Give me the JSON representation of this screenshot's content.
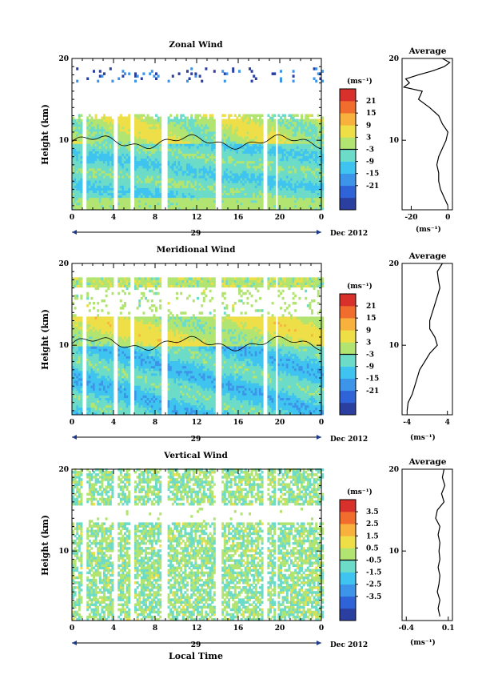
{
  "chart_data": [
    {
      "type": "heatmap",
      "title": "Zonal Wind",
      "ylabel": "Height (km)",
      "x_ticks": [
        "0",
        "4",
        "8",
        "12",
        "16",
        "20",
        "0"
      ],
      "y_ticks": [
        "20",
        "10"
      ],
      "date_day": "29",
      "date_label": "Dec 2012",
      "xlim": [
        0,
        24
      ],
      "ylim": [
        1.5,
        20
      ],
      "colorbar": {
        "unit": "(ms⁻¹)",
        "ticks": [
          "21",
          "15",
          "9",
          "3",
          "-3",
          "-9",
          "-15",
          "-21"
        ],
        "range": [
          -24,
          24
        ]
      },
      "data_gaps_hours": [
        [
          1.0,
          1.4
        ],
        [
          4.0,
          4.4
        ],
        [
          5.6,
          6.0
        ],
        [
          8.6,
          9.2
        ],
        [
          13.7,
          14.2
        ],
        [
          18.2,
          18.6
        ],
        [
          19.4,
          19.7
        ]
      ],
      "profile": {
        "title": "Average",
        "x_ticks": [
          "-20",
          "0"
        ],
        "y_ticks": [
          "20",
          "10"
        ],
        "unit": "(ms⁻¹)",
        "xlim": [
          -25,
          2.5
        ],
        "height": [
          2,
          3,
          4,
          5,
          6,
          7,
          8,
          9,
          10,
          11,
          12,
          13,
          14,
          15,
          16,
          16.5,
          17,
          17.5,
          18,
          18.5,
          19,
          19.5,
          20
        ],
        "value": [
          0,
          -2,
          -4,
          -5,
          -5,
          -6,
          -5,
          -3,
          -1,
          0,
          -3,
          -5,
          -10,
          -16,
          -14,
          -24,
          -21,
          -23,
          -16,
          -8,
          -2,
          1,
          -3
        ]
      }
    },
    {
      "type": "heatmap",
      "title": "Meridional Wind",
      "ylabel": "Height (km)",
      "x_ticks": [
        "0",
        "4",
        "8",
        "12",
        "16",
        "20",
        "0"
      ],
      "y_ticks": [
        "20",
        "10"
      ],
      "date_day": "29",
      "date_label": "Dec 2012",
      "xlim": [
        0,
        24
      ],
      "ylim": [
        1.5,
        20
      ],
      "colorbar": {
        "unit": "(ms⁻¹)",
        "ticks": [
          "21",
          "15",
          "9",
          "3",
          "-3",
          "-9",
          "-15",
          "-21"
        ],
        "range": [
          -24,
          24
        ]
      },
      "data_gaps_hours": [
        [
          1.0,
          1.4
        ],
        [
          4.0,
          4.4
        ],
        [
          5.6,
          6.0
        ],
        [
          8.6,
          9.2
        ],
        [
          13.7,
          14.2
        ],
        [
          18.2,
          18.6
        ],
        [
          19.4,
          19.7
        ]
      ],
      "profile": {
        "title": "Average",
        "x_ticks": [
          "-4",
          "4"
        ],
        "y_ticks": [
          "20",
          "10"
        ],
        "unit": "(ms⁻¹)",
        "xlim": [
          -5,
          5
        ],
        "height": [
          2,
          3,
          4,
          5,
          6,
          7,
          8,
          9,
          10,
          11,
          12,
          13,
          14,
          15,
          16,
          17,
          18,
          19,
          20
        ],
        "value": [
          -4,
          -3.8,
          -3,
          -2.5,
          -2,
          -1.5,
          -0.5,
          0.5,
          2,
          1.5,
          0.5,
          0.5,
          1,
          1.5,
          2,
          2.5,
          2.2,
          2,
          3
        ]
      }
    },
    {
      "type": "heatmap",
      "title": "Vertical Wind",
      "ylabel": "Height (km)",
      "xlabel": "Local Time",
      "x_ticks": [
        "0",
        "4",
        "8",
        "12",
        "16",
        "20",
        "0"
      ],
      "y_ticks": [
        "20",
        "10"
      ],
      "date_day": "29",
      "date_label": "Dec 2012",
      "xlim": [
        0,
        24
      ],
      "ylim": [
        1.5,
        20
      ],
      "colorbar": {
        "unit": "(ms⁻¹)",
        "ticks": [
          "3.5",
          "2.5",
          "1.5",
          "0.5",
          "-0.5",
          "-1.5",
          "-2.5",
          "-3.5"
        ],
        "range": [
          -4,
          4
        ]
      },
      "data_gaps_hours": [
        [
          1.0,
          1.4
        ],
        [
          4.0,
          4.4
        ],
        [
          5.6,
          6.0
        ],
        [
          8.6,
          9.2
        ],
        [
          13.7,
          14.2
        ],
        [
          18.2,
          18.6
        ],
        [
          19.4,
          19.7
        ]
      ],
      "profile": {
        "title": "Average",
        "x_ticks": [
          "-0.4",
          "0.1"
        ],
        "y_ticks": [
          "20",
          "10"
        ],
        "unit": "(ms⁻¹)",
        "xlim": [
          -0.45,
          0.15
        ],
        "height": [
          2,
          3,
          4,
          5,
          6,
          7,
          8,
          9,
          10,
          11,
          12,
          13,
          14,
          15,
          16,
          17,
          18,
          19,
          20
        ],
        "value": [
          0,
          -0.02,
          0,
          -0.03,
          -0.01,
          0,
          -0.02,
          0,
          -0.01,
          0,
          -0.02,
          0,
          -0.05,
          -0.03,
          0.05,
          0.02,
          0.06,
          0.03,
          0.05
        ]
      }
    }
  ]
}
